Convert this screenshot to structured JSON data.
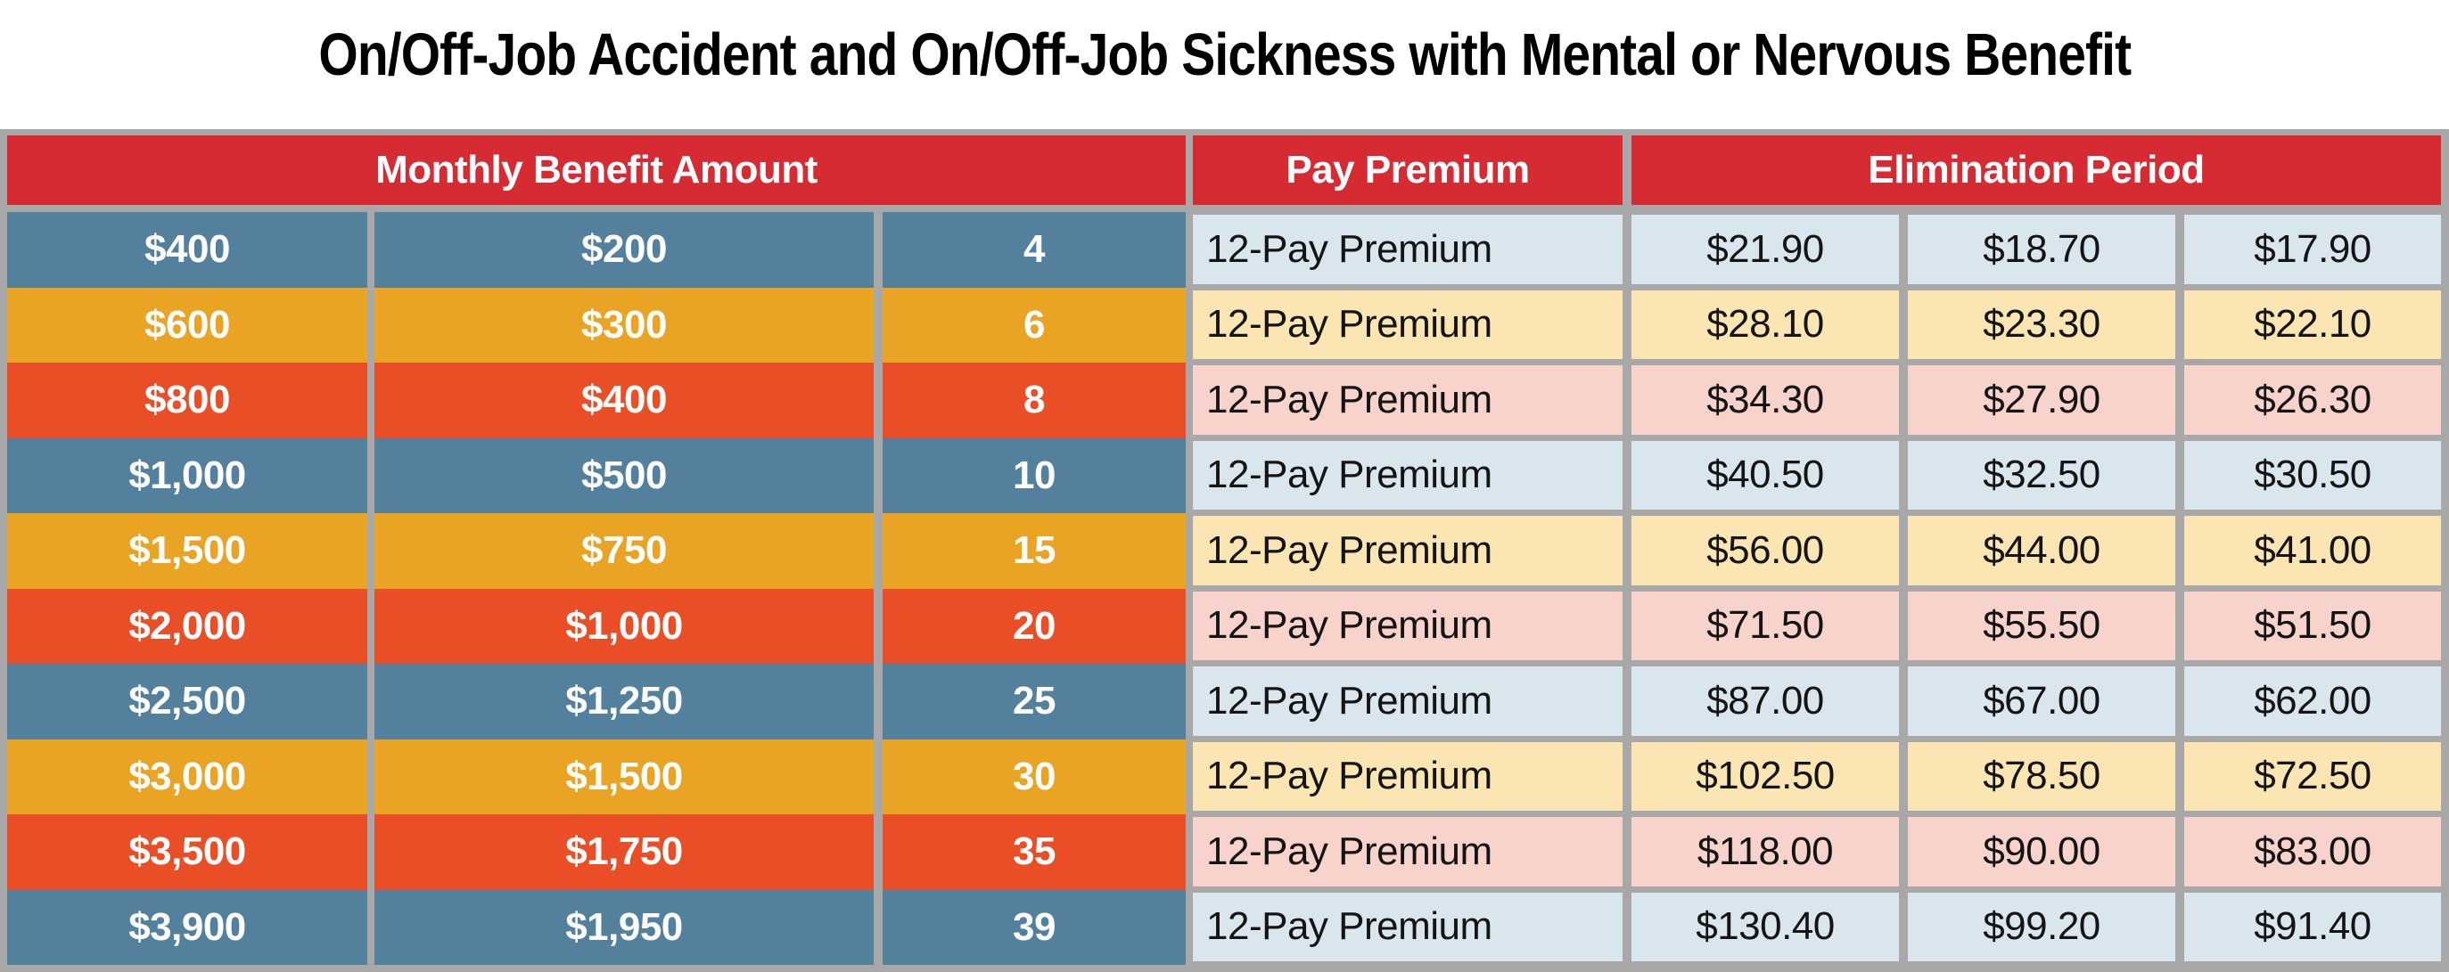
{
  "title": "On/Off-Job Accident and On/Off-Job Sickness with Mental or Nervous Benefit",
  "table": {
    "headers": {
      "monthly_benefit": "Monthly Benefit Amount",
      "pay_premium": "Pay Premium",
      "elimination_period": "Elimination Period"
    },
    "rows": [
      {
        "scheme": "blue",
        "amount_full": "$400",
        "amount_half": "$200",
        "units": "4",
        "pay_label": "12-Pay Premium",
        "premiums": [
          "$21.90",
          "$18.70",
          "$17.90"
        ]
      },
      {
        "scheme": "amber",
        "amount_full": "$600",
        "amount_half": "$300",
        "units": "6",
        "pay_label": "12-Pay Premium",
        "premiums": [
          "$28.10",
          "$23.30",
          "$22.10"
        ]
      },
      {
        "scheme": "orange",
        "amount_full": "$800",
        "amount_half": "$400",
        "units": "8",
        "pay_label": "12-Pay Premium",
        "premiums": [
          "$34.30",
          "$27.90",
          "$26.30"
        ]
      },
      {
        "scheme": "blue",
        "amount_full": "$1,000",
        "amount_half": "$500",
        "units": "10",
        "pay_label": "12-Pay Premium",
        "premiums": [
          "$40.50",
          "$32.50",
          "$30.50"
        ]
      },
      {
        "scheme": "amber",
        "amount_full": "$1,500",
        "amount_half": "$750",
        "units": "15",
        "pay_label": "12-Pay Premium",
        "premiums": [
          "$56.00",
          "$44.00",
          "$41.00"
        ]
      },
      {
        "scheme": "orange",
        "amount_full": "$2,000",
        "amount_half": "$1,000",
        "units": "20",
        "pay_label": "12-Pay Premium",
        "premiums": [
          "$71.50",
          "$55.50",
          "$51.50"
        ]
      },
      {
        "scheme": "blue",
        "amount_full": "$2,500",
        "amount_half": "$1,250",
        "units": "25",
        "pay_label": "12-Pay Premium",
        "premiums": [
          "$87.00",
          "$67.00",
          "$62.00"
        ]
      },
      {
        "scheme": "amber",
        "amount_full": "$3,000",
        "amount_half": "$1,500",
        "units": "30",
        "pay_label": "12-Pay Premium",
        "premiums": [
          "$102.50",
          "$78.50",
          "$72.50"
        ]
      },
      {
        "scheme": "orange",
        "amount_full": "$3,500",
        "amount_half": "$1,750",
        "units": "35",
        "pay_label": "12-Pay Premium",
        "premiums": [
          "$118.00",
          "$90.00",
          "$83.00"
        ]
      },
      {
        "scheme": "blue",
        "amount_full": "$3,900",
        "amount_half": "$1,950",
        "units": "39",
        "pay_label": "12-Pay Premium",
        "premiums": [
          "$130.40",
          "$99.20",
          "$91.40"
        ]
      }
    ]
  },
  "colors": {
    "header_red": "#d62b33",
    "row_blue": "#53809c",
    "row_amber": "#e9a424",
    "row_orange": "#e94e27",
    "tint_blue": "#dae6ed",
    "tint_yellow": "#fbe5b2",
    "tint_pink": "#f7d3cb",
    "grid_gray": "#a8a8a8"
  }
}
